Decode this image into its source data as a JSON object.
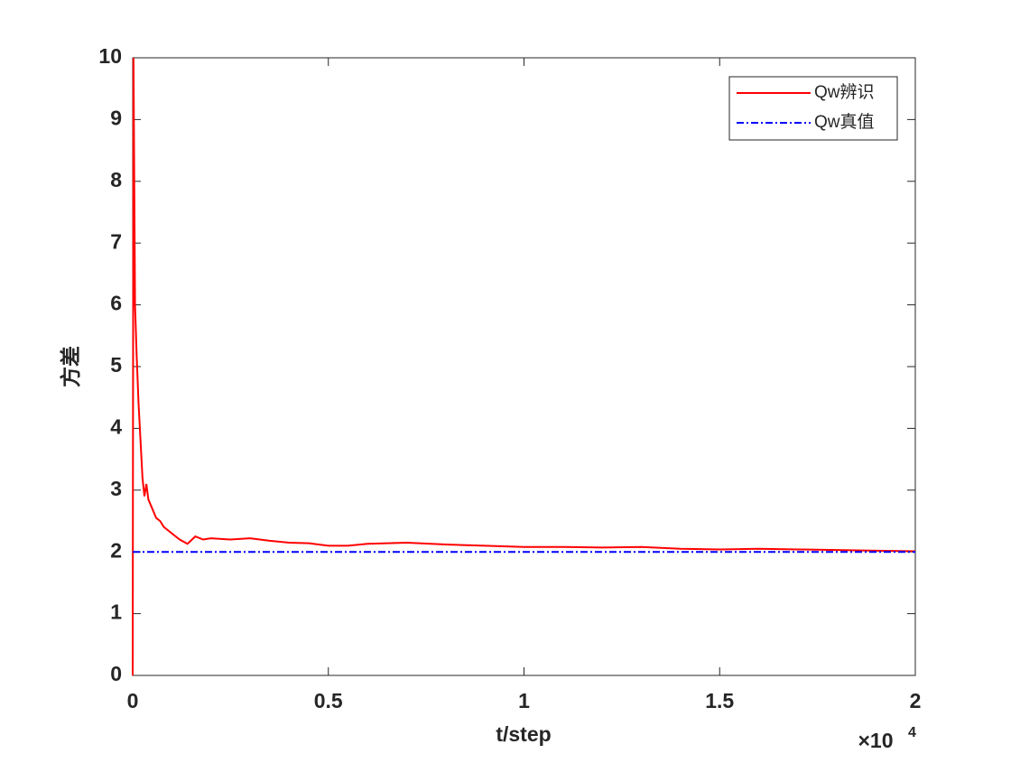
{
  "chart_data": {
    "type": "line",
    "xlabel": "t/step",
    "ylabel": "方差",
    "x_multiplier": {
      "base": "×10",
      "exponent": "4"
    },
    "xlim": [
      0,
      20000
    ],
    "xticks": [
      0,
      {
        "value": 5000,
        "label": "0.5"
      },
      {
        "value": 10000,
        "label": "1"
      },
      {
        "value": 15000,
        "label": "1.5"
      },
      {
        "value": 20000,
        "label": "2"
      }
    ],
    "ylim": [
      0,
      10
    ],
    "yticks": [
      0,
      1,
      2,
      3,
      4,
      5,
      6,
      7,
      8,
      9,
      10
    ],
    "grid": false,
    "legend": "northeast",
    "series": [
      {
        "name": "Qw辨识",
        "color": "#ff0000",
        "style": "solid",
        "x": [
          0,
          20,
          60,
          100,
          150,
          200,
          250,
          300,
          350,
          400,
          500,
          600,
          700,
          800,
          900,
          1000,
          1200,
          1400,
          1600,
          1800,
          2000,
          2500,
          3000,
          3500,
          4000,
          4500,
          5000,
          5500,
          6000,
          7000,
          8000,
          9000,
          10000,
          11000,
          12000,
          13000,
          14000,
          15000,
          16000,
          17000,
          18000,
          19000,
          20000
        ],
        "values": [
          0,
          10,
          6,
          5.2,
          4.4,
          3.8,
          3.2,
          2.9,
          3.1,
          2.85,
          2.7,
          2.55,
          2.5,
          2.4,
          2.35,
          2.3,
          2.2,
          2.13,
          2.25,
          2.2,
          2.22,
          2.2,
          2.22,
          2.18,
          2.15,
          2.14,
          2.1,
          2.1,
          2.13,
          2.15,
          2.12,
          2.1,
          2.08,
          2.08,
          2.07,
          2.08,
          2.05,
          2.04,
          2.05,
          2.04,
          2.03,
          2.02,
          2.01
        ]
      },
      {
        "name": "Qw真值",
        "color": "#0000ff",
        "style": "dashdot",
        "x": [
          0,
          20000
        ],
        "values": [
          2,
          2
        ]
      }
    ]
  }
}
